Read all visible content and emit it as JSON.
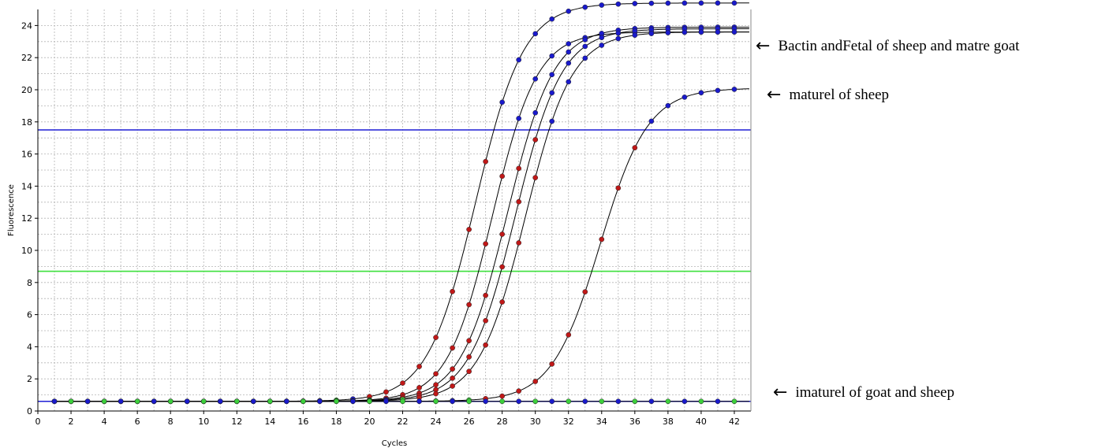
{
  "chart_data": {
    "type": "line",
    "xlabel": "Cycles",
    "ylabel": "Fluorescence",
    "xlim": [
      0,
      43
    ],
    "ylim": [
      0,
      25
    ],
    "x_ticks": [
      0,
      2,
      4,
      6,
      8,
      10,
      12,
      14,
      16,
      18,
      20,
      22,
      24,
      26,
      28,
      30,
      32,
      34,
      36,
      38,
      40,
      42
    ],
    "y_ticks": [
      0,
      2,
      4,
      6,
      8,
      10,
      12,
      14,
      16,
      18,
      20,
      22,
      24
    ],
    "grid": true,
    "threshold_lines": [
      {
        "y": 17.5,
        "color": "#1f1fd6"
      },
      {
        "y": 8.7,
        "color": "#3ee03e"
      },
      {
        "y": 0.6,
        "color": "#1f1fd6"
      }
    ],
    "curves": [
      {
        "baseline": 0.6,
        "max": 25.4,
        "midpoint": 26.4,
        "slope": 1.45,
        "marker_color": "#1a1acc",
        "low_marker_color": "#c01818"
      },
      {
        "baseline": 0.6,
        "max": 23.6,
        "midpoint": 27.4,
        "slope": 1.35,
        "marker_color": "#1a1acc",
        "low_marker_color": "#c01818"
      },
      {
        "baseline": 0.6,
        "max": 23.9,
        "midpoint": 28.3,
        "slope": 1.4,
        "marker_color": "#1a1acc",
        "low_marker_color": "#c01818"
      },
      {
        "baseline": 0.6,
        "max": 23.8,
        "midpoint": 28.8,
        "slope": 1.4,
        "marker_color": "#1a1acc",
        "low_marker_color": "#c01818"
      },
      {
        "baseline": 0.6,
        "max": 23.6,
        "midpoint": 29.4,
        "slope": 1.4,
        "marker_color": "#1a1acc",
        "low_marker_color": "#c01818"
      },
      {
        "baseline": 0.6,
        "max": 20.1,
        "midpoint": 33.9,
        "slope": 1.45,
        "marker_color": "#1a1acc",
        "low_marker_color": "#c01818"
      },
      {
        "baseline": 0.6,
        "max": 0.6,
        "midpoint": 100,
        "slope": 1,
        "marker_color": "#1a1acc",
        "low_marker_color": "#1a1acc"
      }
    ],
    "annotations": [
      {
        "text": "Bactin andFetal of sheep and matre goat"
      },
      {
        "text": "maturel of sheep"
      },
      {
        "text": "imaturel of goat and sheep"
      }
    ]
  }
}
